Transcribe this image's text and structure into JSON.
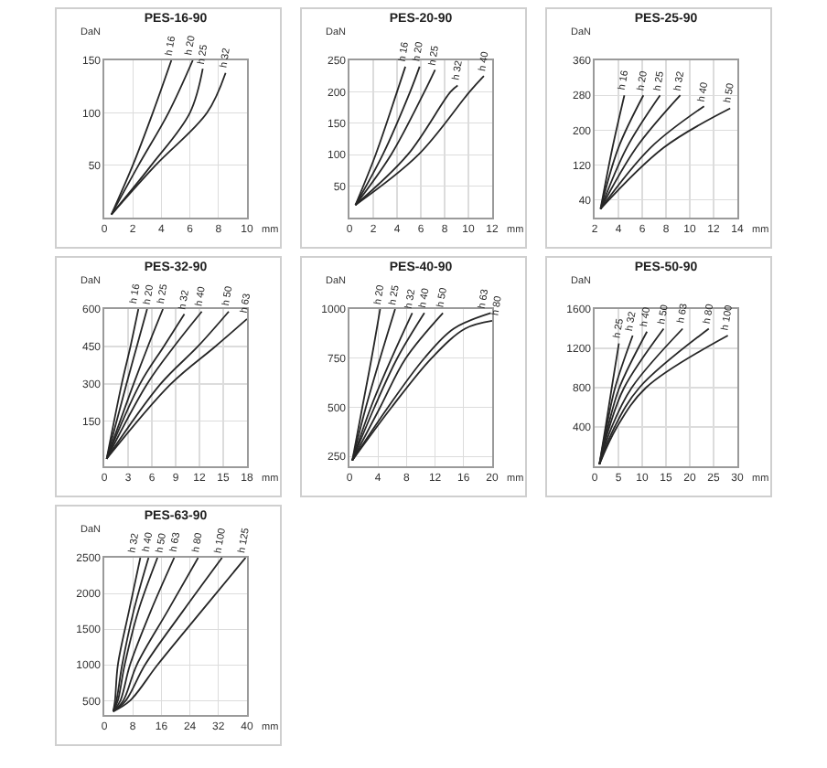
{
  "chart_data": [
    {
      "type": "line",
      "title": "PES-16-90",
      "xlabel": "mm",
      "ylabel": "DaN",
      "xlim": [
        0,
        10
      ],
      "xticks": [
        0,
        2,
        4,
        6,
        8,
        10
      ],
      "ylim": [
        0,
        150
      ],
      "yticks": [
        50,
        100,
        150
      ],
      "grid": true,
      "line_style": "solid",
      "series": [
        {
          "name": "h 16",
          "color": "#262626",
          "x": [
            0.5,
            2.0,
            3.4,
            4.7
          ],
          "values": [
            3,
            50,
            100,
            150
          ]
        },
        {
          "name": "h 20",
          "color": "#262626",
          "x": [
            0.5,
            2.4,
            4.5,
            6.2
          ],
          "values": [
            3,
            50,
            100,
            150
          ]
        },
        {
          "name": "h 25",
          "color": "#262626",
          "x": [
            0.5,
            3.3,
            6.0,
            6.9
          ],
          "values": [
            3,
            50,
            100,
            142
          ]
        },
        {
          "name": "h 32",
          "color": "#262626",
          "x": [
            0.5,
            3.6,
            7.2,
            8.5
          ],
          "values": [
            3,
            50,
            100,
            138
          ]
        }
      ]
    },
    {
      "type": "line",
      "title": "PES-20-90",
      "xlabel": "mm",
      "ylabel": "DaN",
      "xlim": [
        0,
        12
      ],
      "xticks": [
        0,
        2,
        4,
        6,
        8,
        10,
        12
      ],
      "ylim": [
        0,
        250
      ],
      "yticks": [
        50,
        100,
        150,
        200,
        250
      ],
      "grid": true,
      "line_style": "solid",
      "series": [
        {
          "name": "h 16",
          "color": "#262626",
          "x": [
            0.5,
            2.2,
            4.0,
            4.7
          ],
          "values": [
            20,
            100,
            200,
            240
          ]
        },
        {
          "name": "h 20",
          "color": "#262626",
          "x": [
            0.5,
            2.8,
            5.1,
            5.9
          ],
          "values": [
            20,
            100,
            200,
            240
          ]
        },
        {
          "name": "h 25",
          "color": "#262626",
          "x": [
            0.5,
            3.5,
            6.3,
            7.2
          ],
          "values": [
            20,
            100,
            200,
            235
          ]
        },
        {
          "name": "h 32",
          "color": "#262626",
          "x": [
            0.5,
            4.9,
            8.5,
            9.1
          ],
          "values": [
            20,
            100,
            200,
            210
          ]
        },
        {
          "name": "h 40",
          "color": "#262626",
          "x": [
            0.5,
            5.8,
            10.1,
            11.3
          ],
          "values": [
            20,
            100,
            200,
            225
          ]
        }
      ]
    },
    {
      "type": "line",
      "title": "PES-25-90",
      "xlabel": "mm",
      "ylabel": "DaN",
      "xlim": [
        2,
        14
      ],
      "xticks": [
        2,
        4,
        6,
        8,
        10,
        12,
        14
      ],
      "ylim": [
        0,
        360
      ],
      "yticks": [
        40,
        120,
        200,
        280,
        360
      ],
      "grid": true,
      "line_style": "solid",
      "series": [
        {
          "name": "h 16",
          "color": "#262626",
          "x": [
            2.5,
            3.5,
            4.5
          ],
          "values": [
            20,
            160,
            280
          ]
        },
        {
          "name": "h 20",
          "color": "#262626",
          "x": [
            2.5,
            4.0,
            6.1
          ],
          "values": [
            20,
            160,
            280
          ]
        },
        {
          "name": "h 25",
          "color": "#262626",
          "x": [
            2.5,
            4.7,
            7.5
          ],
          "values": [
            20,
            160,
            280
          ]
        },
        {
          "name": "h 32",
          "color": "#262626",
          "x": [
            2.5,
            5.5,
            9.2
          ],
          "values": [
            20,
            160,
            280
          ]
        },
        {
          "name": "h 40",
          "color": "#262626",
          "x": [
            2.5,
            6.7,
            11.2
          ],
          "values": [
            20,
            160,
            255
          ]
        },
        {
          "name": "h 50",
          "color": "#262626",
          "x": [
            2.5,
            7.8,
            13.4
          ],
          "values": [
            20,
            160,
            250
          ]
        }
      ]
    },
    {
      "type": "line",
      "title": "PES-32-90",
      "xlabel": "mm",
      "ylabel": "DaN",
      "xlim": [
        0,
        18
      ],
      "xticks": [
        0,
        3,
        6,
        9,
        12,
        15,
        18
      ],
      "ylim": [
        -30,
        600
      ],
      "yticks": [
        150,
        300,
        450,
        600
      ],
      "grid": true,
      "line_style": "solid",
      "series": [
        {
          "name": "h 16",
          "color": "#262626",
          "x": [
            0.3,
            2.2,
            3.3,
            4.3
          ],
          "values": [
            0,
            300,
            450,
            600
          ]
        },
        {
          "name": "h 20",
          "color": "#262626",
          "x": [
            0.3,
            2.8,
            4.1,
            5.4
          ],
          "values": [
            0,
            300,
            450,
            600
          ]
        },
        {
          "name": "h 25",
          "color": "#262626",
          "x": [
            0.3,
            3.7,
            5.5,
            7.4
          ],
          "values": [
            0,
            300,
            450,
            600
          ]
        },
        {
          "name": "h 32",
          "color": "#262626",
          "x": [
            0.3,
            4.5,
            7.5,
            10.1
          ],
          "values": [
            0,
            300,
            450,
            580
          ]
        },
        {
          "name": "h 40",
          "color": "#262626",
          "x": [
            0.3,
            5.4,
            8.8,
            12.3
          ],
          "values": [
            0,
            300,
            450,
            590
          ]
        },
        {
          "name": "h 50",
          "color": "#262626",
          "x": [
            0.3,
            7.1,
            11.8,
            15.7
          ],
          "values": [
            0,
            300,
            450,
            590
          ]
        },
        {
          "name": "h 63",
          "color": "#262626",
          "x": [
            0.3,
            8.4,
            14.0,
            18.0
          ],
          "values": [
            0,
            300,
            450,
            560
          ]
        }
      ]
    },
    {
      "type": "line",
      "title": "PES-40-90",
      "xlabel": "mm",
      "ylabel": "DaN",
      "xlim": [
        0,
        20
      ],
      "xticks": [
        0,
        4,
        8,
        12,
        16,
        20
      ],
      "ylim": [
        200,
        1000
      ],
      "yticks": [
        250,
        500,
        750,
        1000
      ],
      "grid": true,
      "line_style": "solid",
      "series": [
        {
          "name": "h 20",
          "color": "#262626",
          "x": [
            0.4,
            1.8,
            3.1,
            4.3
          ],
          "values": [
            230,
            500,
            750,
            1000
          ]
        },
        {
          "name": "h 25",
          "color": "#262626",
          "x": [
            0.4,
            2.3,
            4.3,
            6.4
          ],
          "values": [
            230,
            500,
            750,
            1000
          ]
        },
        {
          "name": "h 32",
          "color": "#262626",
          "x": [
            0.4,
            3.0,
            5.9,
            8.8
          ],
          "values": [
            230,
            500,
            750,
            980
          ]
        },
        {
          "name": "h 40",
          "color": "#262626",
          "x": [
            0.4,
            3.5,
            6.7,
            10.5
          ],
          "values": [
            230,
            500,
            750,
            980
          ]
        },
        {
          "name": "h 50",
          "color": "#262626",
          "x": [
            0.4,
            4.3,
            7.9,
            13.1
          ],
          "values": [
            230,
            500,
            750,
            980
          ]
        },
        {
          "name": "h 63",
          "color": "#262626",
          "x": [
            0.4,
            5.4,
            10.5,
            14.6,
            19.8
          ],
          "values": [
            230,
            500,
            750,
            900,
            980
          ]
        },
        {
          "name": "h 80",
          "color": "#262626",
          "x": [
            0.4,
            5.9,
            11.5,
            16.2,
            20.0
          ],
          "values": [
            230,
            500,
            750,
            900,
            940
          ]
        }
      ]
    },
    {
      "type": "line",
      "title": "PES-50-90",
      "xlabel": "mm",
      "ylabel": "DaN",
      "xlim": [
        0,
        30
      ],
      "xticks": [
        0,
        5,
        10,
        15,
        20,
        25,
        30
      ],
      "ylim": [
        0,
        1600
      ],
      "yticks": [
        400,
        800,
        1200,
        1600
      ],
      "grid": true,
      "line_style": "solid",
      "series": [
        {
          "name": "h 25",
          "color": "#262626",
          "x": [
            1,
            2.3,
            3.6,
            5.1
          ],
          "values": [
            20,
            400,
            800,
            1250
          ]
        },
        {
          "name": "h 32",
          "color": "#262626",
          "x": [
            1,
            2.5,
            4.3,
            8.0
          ],
          "values": [
            20,
            400,
            800,
            1330
          ]
        },
        {
          "name": "h 40",
          "color": "#262626",
          "x": [
            1,
            2.8,
            5.2,
            11.0
          ],
          "values": [
            20,
            400,
            800,
            1370
          ]
        },
        {
          "name": "h 50",
          "color": "#262626",
          "x": [
            1,
            3.1,
            6.2,
            14.5
          ],
          "values": [
            20,
            400,
            800,
            1400
          ]
        },
        {
          "name": "h 63",
          "color": "#262626",
          "x": [
            1,
            3.6,
            7.8,
            18.5
          ],
          "values": [
            20,
            400,
            800,
            1400
          ]
        },
        {
          "name": "h 80",
          "color": "#262626",
          "x": [
            1,
            4.2,
            9.4,
            24.0
          ],
          "values": [
            20,
            400,
            800,
            1400
          ]
        },
        {
          "name": "h 100",
          "color": "#262626",
          "x": [
            1,
            4.7,
            10.8,
            28.0
          ],
          "values": [
            20,
            400,
            800,
            1330
          ]
        }
      ]
    },
    {
      "type": "line",
      "title": "PES-63-90",
      "xlabel": "mm",
      "ylabel": "DaN",
      "xlim": [
        0,
        40
      ],
      "xticks": [
        0,
        8,
        16,
        24,
        32,
        40
      ],
      "ylim": [
        300,
        2500
      ],
      "yticks": [
        500,
        1000,
        1500,
        2000,
        2500
      ],
      "grid": true,
      "line_style": "solid",
      "series": [
        {
          "name": "h 32",
          "color": "#262626",
          "x": [
            2.5,
            3.0,
            3.8,
            6.9,
            10.1
          ],
          "values": [
            350,
            500,
            1000,
            1750,
            2500
          ]
        },
        {
          "name": "h 40",
          "color": "#262626",
          "x": [
            2.5,
            3.4,
            5.0,
            8.2,
            12.4
          ],
          "values": [
            350,
            500,
            1000,
            1750,
            2500
          ]
        },
        {
          "name": "h 50",
          "color": "#262626",
          "x": [
            2.5,
            3.8,
            5.7,
            9.5,
            14.9
          ],
          "values": [
            350,
            500,
            1000,
            1750,
            2500
          ]
        },
        {
          "name": "h 63",
          "color": "#262626",
          "x": [
            2.5,
            4.5,
            7.2,
            13.0,
            19.6
          ],
          "values": [
            350,
            500,
            1000,
            1750,
            2500
          ]
        },
        {
          "name": "h 80",
          "color": "#262626",
          "x": [
            2.5,
            5.3,
            9.1,
            17.7,
            26.3
          ],
          "values": [
            350,
            500,
            1000,
            1750,
            2500
          ]
        },
        {
          "name": "h 100",
          "color": "#262626",
          "x": [
            2.5,
            6.0,
            11.4,
            22.0,
            33.0
          ],
          "values": [
            350,
            500,
            1000,
            1750,
            2500
          ]
        },
        {
          "name": "h 125",
          "color": "#262626",
          "x": [
            2.5,
            7.2,
            14.9,
            27.2,
            39.6
          ],
          "values": [
            350,
            500,
            1000,
            1750,
            2500
          ]
        }
      ]
    }
  ]
}
